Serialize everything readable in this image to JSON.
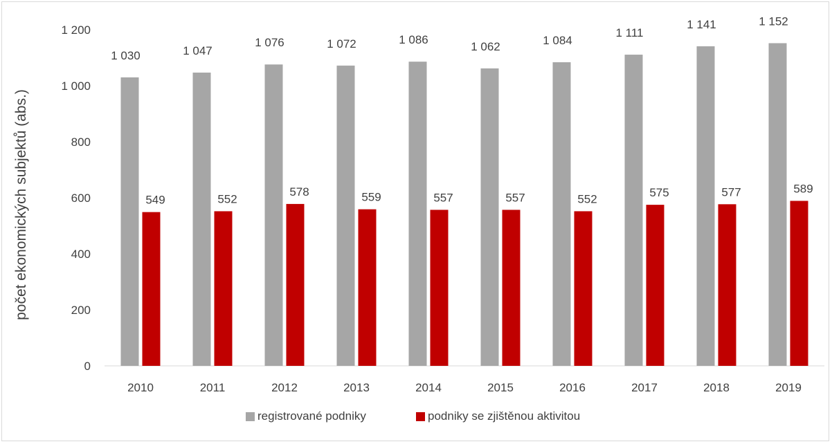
{
  "chart_data": {
    "type": "bar",
    "title": "",
    "xlabel": "",
    "ylabel": "počet ekonomických subjektů (abs.)",
    "categories": [
      "2010",
      "2011",
      "2012",
      "2013",
      "2014",
      "2015",
      "2016",
      "2017",
      "2018",
      "2019"
    ],
    "series": [
      {
        "name": "registrované podniky",
        "color": "#a6a6a6",
        "values": [
          1030,
          1047,
          1076,
          1072,
          1086,
          1062,
          1084,
          1111,
          1141,
          1152
        ],
        "labels": [
          "1 030",
          "1 047",
          "1 076",
          "1 072",
          "1 086",
          "1 062",
          "1 084",
          "1 111",
          "1 141",
          "1 152"
        ]
      },
      {
        "name": "podniky se zjištěnou aktivitou",
        "color": "#c00000",
        "values": [
          549,
          552,
          578,
          559,
          557,
          557,
          552,
          575,
          577,
          589
        ],
        "labels": [
          "549",
          "552",
          "578",
          "559",
          "557",
          "557",
          "552",
          "575",
          "577",
          "589"
        ]
      }
    ],
    "ylim": [
      0,
      1200
    ],
    "yticks": [
      0,
      200,
      400,
      600,
      800,
      1000,
      1200
    ],
    "ytick_labels": [
      "0",
      "200",
      "400",
      "600",
      "800",
      "1 000",
      "1 200"
    ],
    "grid": false,
    "legend_position": "bottom"
  }
}
